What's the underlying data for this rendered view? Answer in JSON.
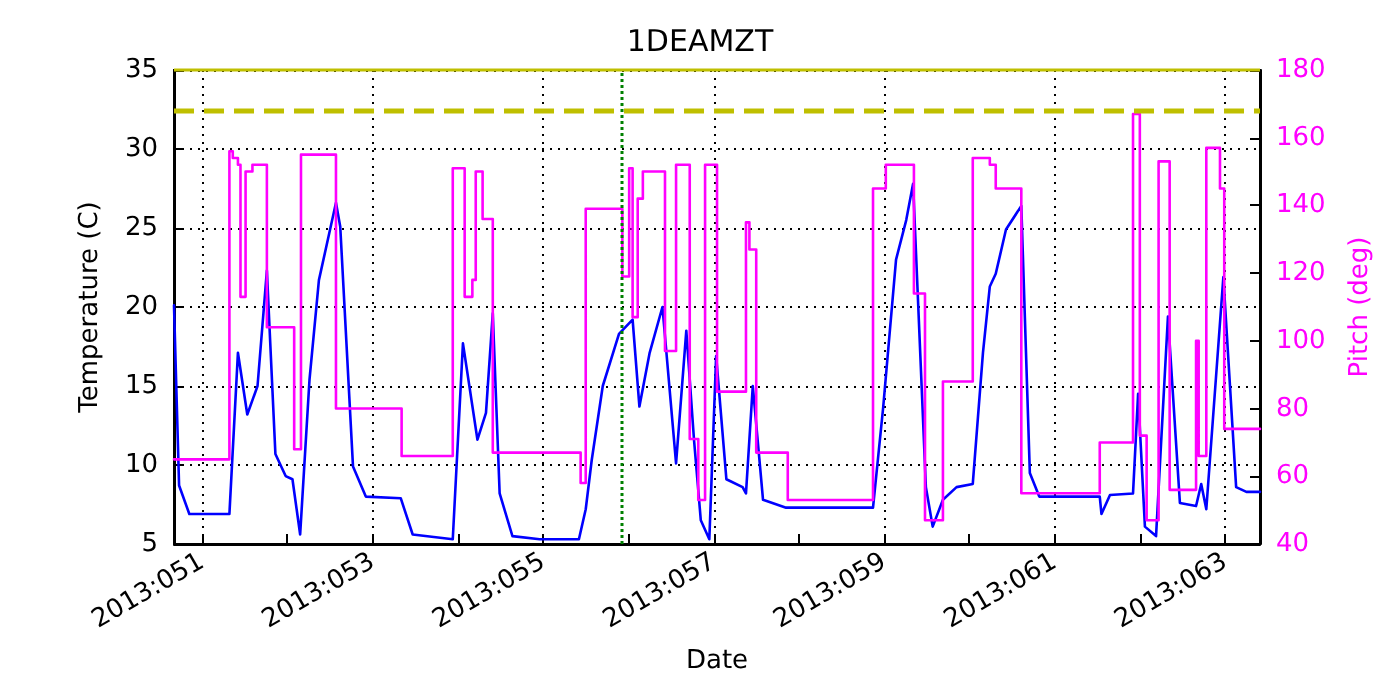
{
  "chart_data": {
    "type": "line",
    "title": "1DEAMZT",
    "xlabel": "Date",
    "ylabel": "Temperature (C)",
    "y2label": "Pitch (deg)",
    "xlim": [
      "2013-02-19T16:05",
      "2013-03-04T09:50"
    ],
    "xticks": [
      {
        "value": "2013-02-20",
        "label": "2013:051"
      },
      {
        "value": "2013-02-21",
        "label": null
      },
      {
        "value": "2013-02-22",
        "label": "2013:053"
      },
      {
        "value": "2013-02-23",
        "label": null
      },
      {
        "value": "2013-02-24",
        "label": "2013:055"
      },
      {
        "value": "2013-02-25",
        "label": null
      },
      {
        "value": "2013-02-26",
        "label": "2013:057"
      },
      {
        "value": "2013-02-27",
        "label": null
      },
      {
        "value": "2013-02-28",
        "label": "2013:059"
      },
      {
        "value": "2013-03-01",
        "label": null
      },
      {
        "value": "2013-03-02",
        "label": "2013:061"
      },
      {
        "value": "2013-03-03",
        "label": null
      },
      {
        "value": "2013-03-04",
        "label": "2013:063"
      }
    ],
    "ylim": [
      5,
      35
    ],
    "yticks": [
      5,
      10,
      15,
      20,
      25,
      30,
      35
    ],
    "y2lim": [
      40,
      180
    ],
    "y2ticks": [
      40,
      60,
      80,
      100,
      120,
      140,
      160,
      180
    ],
    "grid": true,
    "marker": "none",
    "line_style": "solid",
    "series": [
      {
        "color": "#0000ff",
        "x": [
          "2013-02-19T16:05",
          "2013-02-19T17:31",
          "2013-02-19T20:24",
          "2013-02-20T07:41",
          "2013-02-20T10:05",
          "2013-02-20T12:43",
          "2013-02-20T15:36",
          "2013-02-20T18:14",
          "2013-02-20T20:38",
          "2013-02-20T23:31",
          "2013-02-21T01:26",
          "2013-02-21T03:36",
          "2013-02-21T06:14",
          "2013-02-21T08:53",
          "2013-02-21T13:41",
          "2013-02-21T14:53",
          "2013-02-21T18:29",
          "2013-02-21T22:05",
          "2013-02-22T07:55",
          "2013-02-22T11:17",
          "2013-02-22T22:34",
          "2013-02-23T01:26",
          "2013-02-23T05:31",
          "2013-02-23T07:55",
          "2013-02-23T09:50",
          "2013-02-23T11:46",
          "2013-02-23T15:22",
          "2013-02-23T23:02",
          "2013-02-24T10:05",
          "2013-02-24T12:00",
          "2013-02-24T13:41",
          "2013-02-24T16:48",
          "2013-02-24T21:22",
          "2013-02-25T01:12",
          "2013-02-25T03:07",
          "2013-02-25T06:00",
          "2013-02-25T09:36",
          "2013-02-25T13:26",
          "2013-02-25T16:19",
          "2013-02-25T18:29",
          "2013-02-25T20:24",
          "2013-02-25T22:48",
          "2013-02-26T00:43",
          "2013-02-26T03:36",
          "2013-02-26T08:10",
          "2013-02-26T09:07",
          "2013-02-26T11:02",
          "2013-02-26T13:55",
          "2013-02-26T20:24",
          "2013-02-27T20:53",
          "2013-02-27T23:46",
          "2013-02-28T03:22",
          "2013-02-28T06:14",
          "2013-02-28T08:10",
          "2013-02-28T11:46",
          "2013-02-28T13:41",
          "2013-02-28T16:34",
          "2013-02-28T20:24",
          "2013-03-01T00:58",
          "2013-03-01T03:50",
          "2013-03-01T05:46",
          "2013-03-01T07:26",
          "2013-03-01T10:19",
          "2013-03-01T14:38",
          "2013-03-01T17:02",
          "2013-03-01T19:41",
          "2013-03-02T12:43",
          "2013-03-02T13:12",
          "2013-03-02T15:36",
          "2013-03-02T22:05",
          "2013-03-02T23:31",
          "2013-03-03T01:26",
          "2013-03-03T04:34",
          "2013-03-03T07:55",
          "2013-03-03T11:17",
          "2013-03-03T15:50",
          "2013-03-03T17:17",
          "2013-03-03T18:43",
          "2013-03-03T23:31",
          "2013-03-04T03:07",
          "2013-03-04T06:00",
          "2013-03-04T09:50"
        ],
        "values": [
          20.1,
          8.7,
          6.9,
          6.9,
          17.1,
          13.2,
          15.0,
          22.3,
          10.7,
          9.3,
          9.1,
          5.6,
          15.4,
          21.7,
          26.6,
          25.1,
          9.9,
          8.0,
          7.9,
          5.6,
          5.3,
          17.7,
          11.6,
          13.3,
          19.6,
          8.2,
          5.5,
          5.3,
          5.3,
          7.2,
          10.3,
          15.0,
          18.3,
          19.2,
          13.7,
          17.1,
          20.0,
          10.1,
          18.5,
          11.6,
          6.5,
          5.3,
          16.9,
          9.1,
          8.6,
          8.2,
          15.0,
          7.8,
          7.3,
          7.3,
          13.7,
          23.0,
          25.5,
          27.8,
          8.6,
          6.1,
          7.8,
          8.6,
          8.8,
          17.1,
          21.3,
          22.1,
          24.9,
          26.4,
          9.5,
          8.0,
          8.0,
          6.9,
          8.1,
          8.2,
          14.5,
          6.1,
          5.5,
          19.4,
          7.6,
          7.4,
          8.8,
          7.2,
          21.9,
          8.6,
          8.3,
          8.3
        ]
      },
      {
        "type": "step",
        "axis": "y2",
        "color": "#ff00ff",
        "x": [
          "2013-02-19T16:05",
          "2013-02-20T07:41",
          "2013-02-20T08:38",
          "2013-02-20T10:05",
          "2013-02-20T10:48",
          "2013-02-20T12:14",
          "2013-02-20T14:10",
          "2013-02-20T18:14",
          "2013-02-21T01:55",
          "2013-02-21T03:50",
          "2013-02-21T13:41",
          "2013-02-22T08:10",
          "2013-02-22T22:34",
          "2013-02-23T01:55",
          "2013-02-23T04:05",
          "2013-02-23T05:02",
          "2013-02-23T06:58",
          "2013-02-23T09:50",
          "2013-02-24T10:34",
          "2013-02-24T12:00",
          "2013-02-24T22:19",
          "2013-02-25T00:14",
          "2013-02-25T01:12",
          "2013-02-25T02:38",
          "2013-02-25T04:05",
          "2013-02-25T10:19",
          "2013-02-25T13:26",
          "2013-02-25T17:17",
          "2013-02-25T19:41",
          "2013-02-25T21:36",
          "2013-02-26T00:58",
          "2013-02-26T09:07",
          "2013-02-26T10:05",
          "2013-02-26T12:00",
          "2013-02-26T20:53",
          "2013-02-27T20:53",
          "2013-02-28T00:29",
          "2013-02-28T08:24",
          "2013-02-28T11:31",
          "2013-02-28T16:34",
          "2013-03-01T00:58",
          "2013-03-01T05:46",
          "2013-03-01T07:26",
          "2013-03-01T14:38",
          "2013-03-02T12:43",
          "2013-03-02T22:05",
          "2013-03-03T00:00",
          "2013-03-03T01:55",
          "2013-03-03T05:17",
          "2013-03-03T08:24",
          "2013-03-03T15:50",
          "2013-03-03T16:34",
          "2013-03-03T18:43",
          "2013-03-03T22:34",
          "2013-03-03T23:46",
          "2013-03-04T09:50"
        ],
        "values": [
          65,
          156,
          154,
          152,
          113,
          150,
          152,
          104,
          68,
          155,
          80,
          66,
          151,
          113,
          118,
          150,
          136,
          67,
          58,
          139,
          119,
          151,
          107,
          142,
          150,
          97,
          152,
          71,
          53,
          152,
          85,
          135,
          127,
          67,
          53,
          145,
          152,
          114,
          47,
          88,
          154,
          152,
          145,
          55,
          70,
          167,
          72,
          47,
          153,
          56,
          100,
          66,
          157,
          145,
          74,
          74
        ]
      }
    ],
    "ref_lines": [
      {
        "axis": "y",
        "value": 32.5,
        "color": "#bfbf00",
        "line_style": "dashed"
      },
      {
        "axis": "y",
        "value": 35,
        "color": "#bfbf00",
        "line_style": "solid"
      },
      {
        "axis": "x",
        "value": "2013-02-24T22:19",
        "color": "#008000",
        "line_style": "dotted"
      }
    ]
  }
}
